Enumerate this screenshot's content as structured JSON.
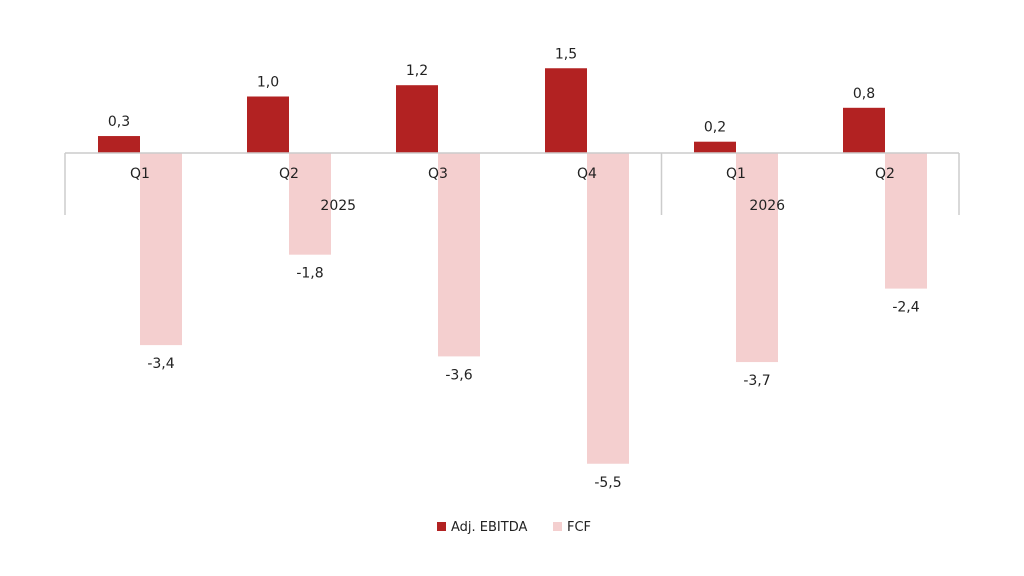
{
  "chart_data": {
    "type": "bar",
    "title": "",
    "xlabel": "",
    "ylabel": "",
    "categories": [
      "Q1",
      "Q2",
      "Q3",
      "Q4",
      "Q1",
      "Q2"
    ],
    "groups": [
      {
        "label": "2025",
        "start": 0,
        "end": 3
      },
      {
        "label": "2026",
        "start": 4,
        "end": 5
      }
    ],
    "series": [
      {
        "name": "Adj. EBITDA",
        "color": "#b22222",
        "values": [
          0.3,
          1.0,
          1.2,
          1.5,
          0.2,
          0.8
        ],
        "labels": [
          "0,3",
          "1,0",
          "1,2",
          "1,5",
          "0,2",
          "0,8"
        ]
      },
      {
        "name": "FCF",
        "color": "#f4cfcf",
        "values": [
          -3.4,
          -1.8,
          -3.6,
          -5.5,
          -3.7,
          -2.4
        ],
        "labels": [
          "-3,4",
          "-1,8",
          "-3,6",
          "-5,5",
          "-3,7",
          "-2,4"
        ]
      }
    ],
    "ylim": [
      -6,
      2
    ],
    "grid": false,
    "legend": "bottom-center",
    "axis_color": "#cccccc"
  }
}
